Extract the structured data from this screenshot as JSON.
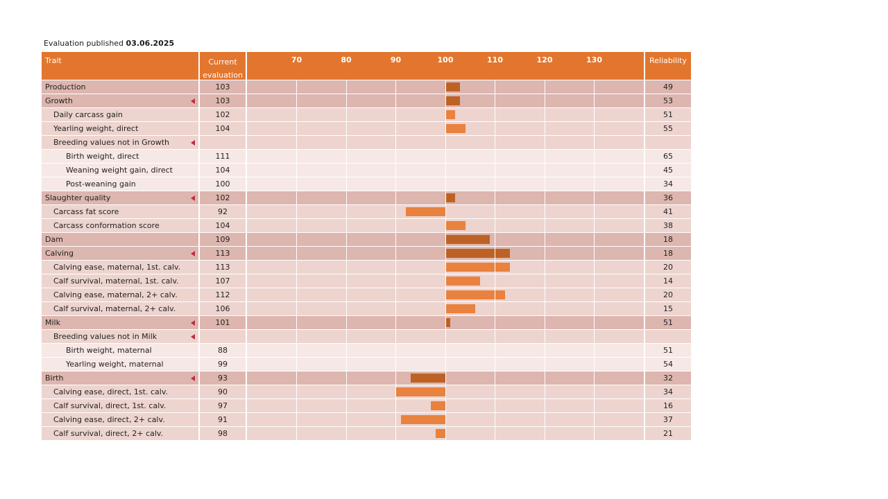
{
  "published": {
    "label": "Evaluation published",
    "date": "03.06.2025"
  },
  "table": {
    "columns": {
      "trait": "Trait",
      "evaluation_line1": "Current",
      "evaluation_line2": "evaluation",
      "reliability": "Reliability"
    },
    "axis": {
      "min": 60,
      "max": 140,
      "baseline": 100,
      "ticks": [
        70,
        80,
        90,
        100,
        110,
        120,
        130
      ]
    },
    "colors": {
      "header_bg": "#e2762e",
      "header_text": "#ffffff",
      "bar_group": "#bd6225",
      "bar_item": "#e8823e",
      "row_level0": "#ddb6af",
      "row_level1": "#edd4cf",
      "row_level2": "#f6e8e5",
      "arrow": "#bf2b40",
      "gridline": "#ffffff",
      "text": "#1f1f1f"
    },
    "rows": [
      {
        "label": "Production",
        "level": 0,
        "arrow": false,
        "value": 103,
        "reliability": 49,
        "bar": "group"
      },
      {
        "label": "Growth",
        "level": 0,
        "arrow": true,
        "value": 103,
        "reliability": 53,
        "bar": "group"
      },
      {
        "label": "Daily carcass gain",
        "level": 1,
        "arrow": false,
        "value": 102,
        "reliability": 51,
        "bar": "item"
      },
      {
        "label": "Yearling weight, direct",
        "level": 1,
        "arrow": false,
        "value": 104,
        "reliability": 55,
        "bar": "item"
      },
      {
        "label": "Breeding values not in Growth",
        "level": 1,
        "arrow": true,
        "value": null,
        "reliability": null,
        "bar": null
      },
      {
        "label": "Birth weight, direct",
        "level": 2,
        "arrow": false,
        "value": 111,
        "reliability": 65,
        "bar": null
      },
      {
        "label": "Weaning weight gain, direct",
        "level": 2,
        "arrow": false,
        "value": 104,
        "reliability": 45,
        "bar": null
      },
      {
        "label": "Post-weaning gain",
        "level": 2,
        "arrow": false,
        "value": 100,
        "reliability": 34,
        "bar": null
      },
      {
        "label": "Slaughter quality",
        "level": 0,
        "arrow": true,
        "value": 102,
        "reliability": 36,
        "bar": "group"
      },
      {
        "label": "Carcass fat score",
        "level": 1,
        "arrow": false,
        "value": 92,
        "reliability": 41,
        "bar": "item"
      },
      {
        "label": "Carcass conformation score",
        "level": 1,
        "arrow": false,
        "value": 104,
        "reliability": 38,
        "bar": "item"
      },
      {
        "label": "Dam",
        "level": 0,
        "arrow": false,
        "value": 109,
        "reliability": 18,
        "bar": "group"
      },
      {
        "label": "Calving",
        "level": 0,
        "arrow": true,
        "value": 113,
        "reliability": 18,
        "bar": "group"
      },
      {
        "label": "Calving ease, maternal, 1st. calv.",
        "level": 1,
        "arrow": false,
        "value": 113,
        "reliability": 20,
        "bar": "item"
      },
      {
        "label": "Calf survival, maternal, 1st. calv.",
        "level": 1,
        "arrow": false,
        "value": 107,
        "reliability": 14,
        "bar": "item"
      },
      {
        "label": "Calving ease, maternal, 2+ calv.",
        "level": 1,
        "arrow": false,
        "value": 112,
        "reliability": 20,
        "bar": "item"
      },
      {
        "label": "Calf survival, maternal, 2+ calv.",
        "level": 1,
        "arrow": false,
        "value": 106,
        "reliability": 15,
        "bar": "item"
      },
      {
        "label": "Milk",
        "level": 0,
        "arrow": true,
        "value": 101,
        "reliability": 51,
        "bar": "group"
      },
      {
        "label": "Breeding values not in Milk",
        "level": 1,
        "arrow": true,
        "value": null,
        "reliability": null,
        "bar": null
      },
      {
        "label": "Birth weight, maternal",
        "level": 2,
        "arrow": false,
        "value": 88,
        "reliability": 51,
        "bar": null
      },
      {
        "label": "Yearling weight, maternal",
        "level": 2,
        "arrow": false,
        "value": 99,
        "reliability": 54,
        "bar": null
      },
      {
        "label": "Birth",
        "level": 0,
        "arrow": true,
        "value": 93,
        "reliability": 32,
        "bar": "group"
      },
      {
        "label": "Calving ease, direct, 1st. calv.",
        "level": 1,
        "arrow": false,
        "value": 90,
        "reliability": 34,
        "bar": "item"
      },
      {
        "label": "Calf survival, direct, 1st. calv.",
        "level": 1,
        "arrow": false,
        "value": 97,
        "reliability": 16,
        "bar": "item"
      },
      {
        "label": "Calving ease, direct, 2+ calv.",
        "level": 1,
        "arrow": false,
        "value": 91,
        "reliability": 37,
        "bar": "item"
      },
      {
        "label": "Calf survival, direct, 2+ calv.",
        "level": 1,
        "arrow": false,
        "value": 98,
        "reliability": 21,
        "bar": "item"
      }
    ]
  },
  "chart_data": {
    "type": "bar",
    "orientation": "horizontal",
    "title": "Evaluation published 03.06.2025",
    "baseline": 100,
    "xlim": [
      60,
      140
    ],
    "axis_ticks": [
      70,
      80,
      90,
      100,
      110,
      120,
      130
    ],
    "grid": true,
    "categories": [
      "Production",
      "Growth",
      "Daily carcass gain",
      "Yearling weight, direct",
      "Breeding values not in Growth",
      "Birth weight, direct",
      "Weaning weight gain, direct",
      "Post-weaning gain",
      "Slaughter quality",
      "Carcass fat score",
      "Carcass conformation score",
      "Dam",
      "Calving",
      "Calving ease, maternal, 1st. calv.",
      "Calf survival, maternal, 1st. calv.",
      "Calving ease, maternal, 2+ calv.",
      "Calf survival, maternal, 2+ calv.",
      "Milk",
      "Breeding values not in Milk",
      "Birth weight, maternal",
      "Yearling weight, maternal",
      "Birth",
      "Calving ease, direct, 1st. calv.",
      "Calf survival, direct, 1st. calv.",
      "Calving ease, direct, 2+ calv.",
      "Calf survival, direct, 2+ calv."
    ],
    "series": [
      {
        "name": "Current evaluation",
        "values": [
          103,
          103,
          102,
          104,
          null,
          111,
          104,
          100,
          102,
          92,
          104,
          109,
          113,
          113,
          107,
          112,
          106,
          101,
          null,
          88,
          99,
          93,
          90,
          97,
          91,
          98
        ],
        "bars_drawn": [
          true,
          true,
          true,
          true,
          false,
          false,
          false,
          false,
          true,
          true,
          true,
          true,
          true,
          true,
          true,
          true,
          true,
          true,
          false,
          false,
          false,
          true,
          true,
          true,
          true,
          true
        ]
      },
      {
        "name": "Reliability",
        "values": [
          49,
          53,
          51,
          55,
          null,
          65,
          45,
          34,
          36,
          41,
          38,
          18,
          18,
          20,
          14,
          20,
          15,
          51,
          null,
          51,
          54,
          32,
          34,
          16,
          37,
          21
        ]
      }
    ]
  }
}
